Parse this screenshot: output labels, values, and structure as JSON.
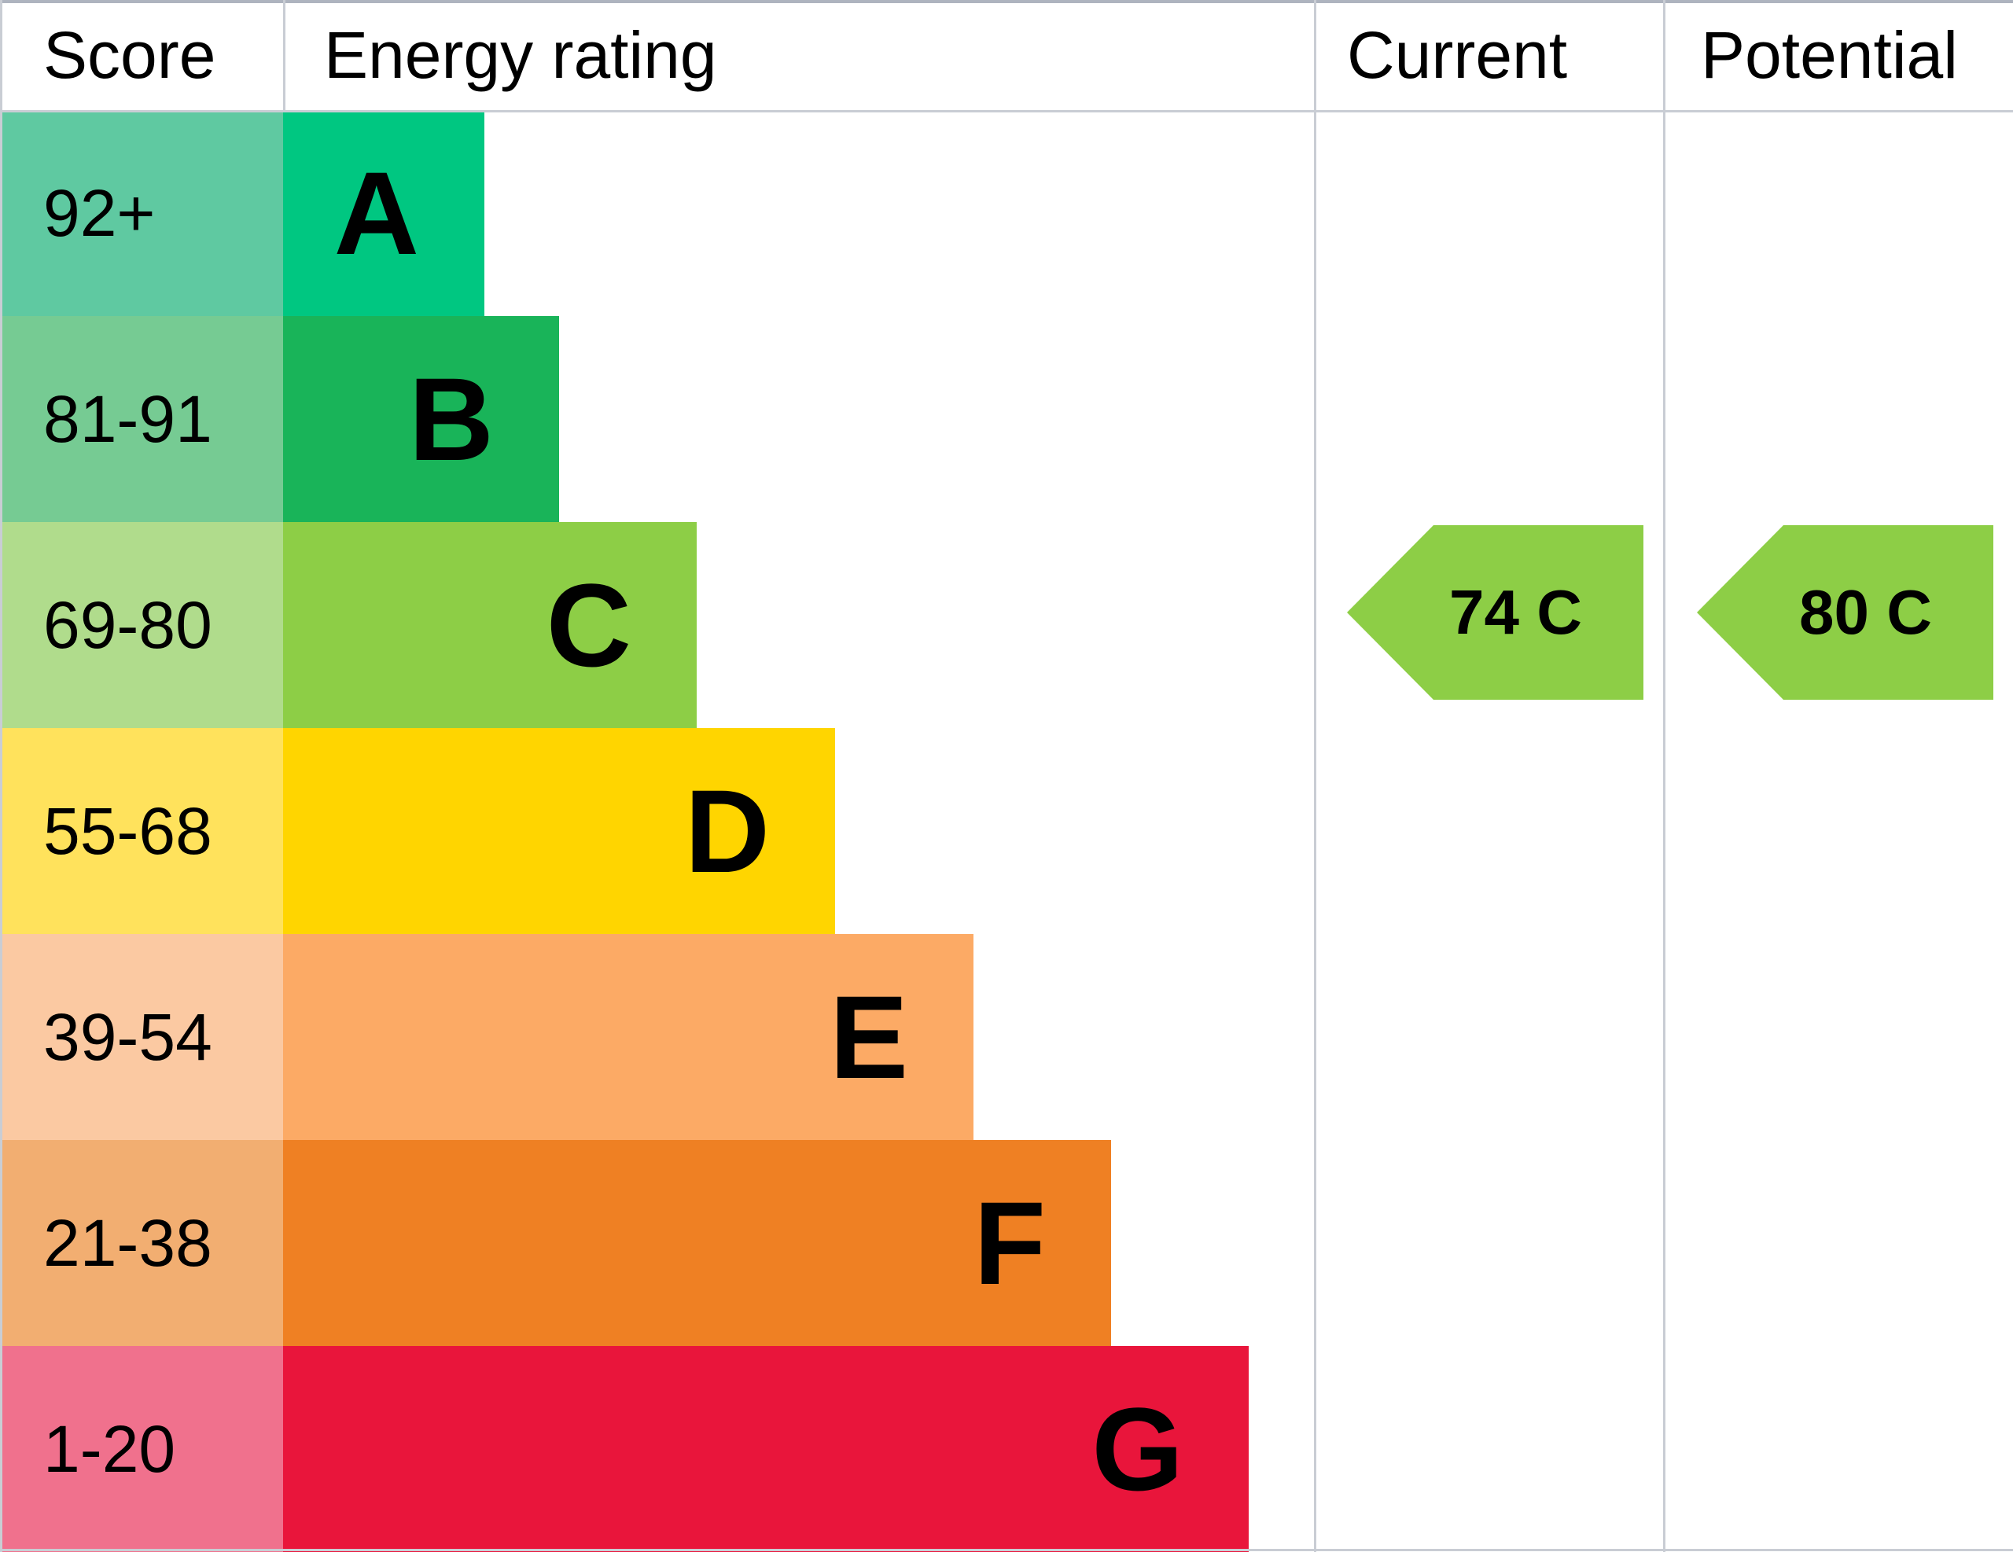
{
  "header": {
    "score": "Score",
    "energy_rating": "Energy rating",
    "current": "Current",
    "potential": "Potential"
  },
  "bands": [
    {
      "score": "92+",
      "letter": "A",
      "bar_color": "#00c781",
      "score_bg": "#5fc9a1"
    },
    {
      "score": "81-91",
      "letter": "B",
      "bar_color": "#19b459",
      "score_bg": "#76cb93"
    },
    {
      "score": "69-80",
      "letter": "C",
      "bar_color": "#8dce46",
      "score_bg": "#b0dc8c"
    },
    {
      "score": "55-68",
      "letter": "D",
      "bar_color": "#ffd500",
      "score_bg": "#ffe25c"
    },
    {
      "score": "39-54",
      "letter": "E",
      "bar_color": "#fcaa65",
      "score_bg": "#fbc9a2"
    },
    {
      "score": "21-38",
      "letter": "F",
      "bar_color": "#ef8023",
      "score_bg": "#f2ae71"
    },
    {
      "score": "1-20",
      "letter": "G",
      "bar_color": "#e9153b",
      "score_bg": "#f0718d"
    }
  ],
  "current": {
    "label": "74 C",
    "value": 74,
    "band": "C",
    "color": "#8dce46"
  },
  "potential": {
    "label": "80 C",
    "value": 80,
    "band": "C",
    "color": "#8dce46"
  },
  "chart_data": {
    "type": "bar",
    "title": "Energy rating",
    "categories": [
      "A",
      "B",
      "C",
      "D",
      "E",
      "F",
      "G"
    ],
    "score_ranges": [
      "92+",
      "81-91",
      "69-80",
      "55-68",
      "39-54",
      "21-38",
      "1-20"
    ],
    "band_colors": [
      "#00c781",
      "#19b459",
      "#8dce46",
      "#ffd500",
      "#fcaa65",
      "#ef8023",
      "#e9153b"
    ],
    "bar_lengths_relative": [
      1.0,
      1.37,
      2.05,
      2.74,
      3.43,
      4.11,
      4.8
    ],
    "markers": [
      {
        "name": "Current",
        "value": 74,
        "band": "C",
        "color": "#8dce46"
      },
      {
        "name": "Potential",
        "value": 80,
        "band": "C",
        "color": "#8dce46"
      }
    ],
    "columns": [
      "Score",
      "Energy rating",
      "Current",
      "Potential"
    ],
    "legend_position": "none",
    "grid": false
  }
}
